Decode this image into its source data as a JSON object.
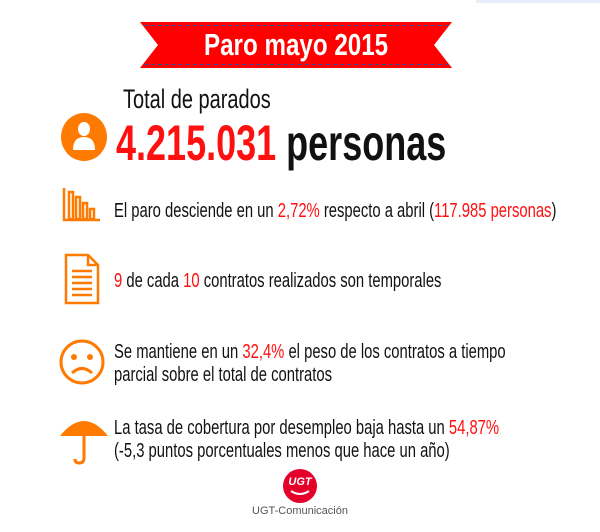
{
  "colors": {
    "accent_red": "#ff1010",
    "icon_orange": "#ff7a00",
    "ribbon_red": "#ff0000",
    "ribbon_stitch": "#3a4fa0"
  },
  "title": "Paro mayo 2015",
  "total": {
    "label": "Total de parados",
    "value": "4.215.031",
    "unit": "personas",
    "icon": "person-icon"
  },
  "facts": [
    {
      "icon": "bar-chart-down-icon",
      "parts": [
        "El paro desciende en un ",
        "2,72%",
        " respecto a abril (",
        "117.985 personas",
        ")"
      ]
    },
    {
      "icon": "document-icon",
      "parts": [
        "9",
        " de cada ",
        "10",
        " contratos realizados son temporales"
      ]
    },
    {
      "icon": "sad-face-icon",
      "line1": [
        "Se mantiene en un ",
        "32,4%",
        " el peso de los contratos a tiempo"
      ],
      "line2": "parcial sobre el total de contratos"
    },
    {
      "icon": "umbrella-icon",
      "line1": [
        "La tasa de cobertura por desempleo baja hasta un ",
        "54,87%"
      ],
      "line2": "(-5,3 puntos porcentuales menos que hace un año)"
    }
  ],
  "footer": {
    "logo_text": "UGT",
    "credit": "UGT-Comunicación"
  }
}
